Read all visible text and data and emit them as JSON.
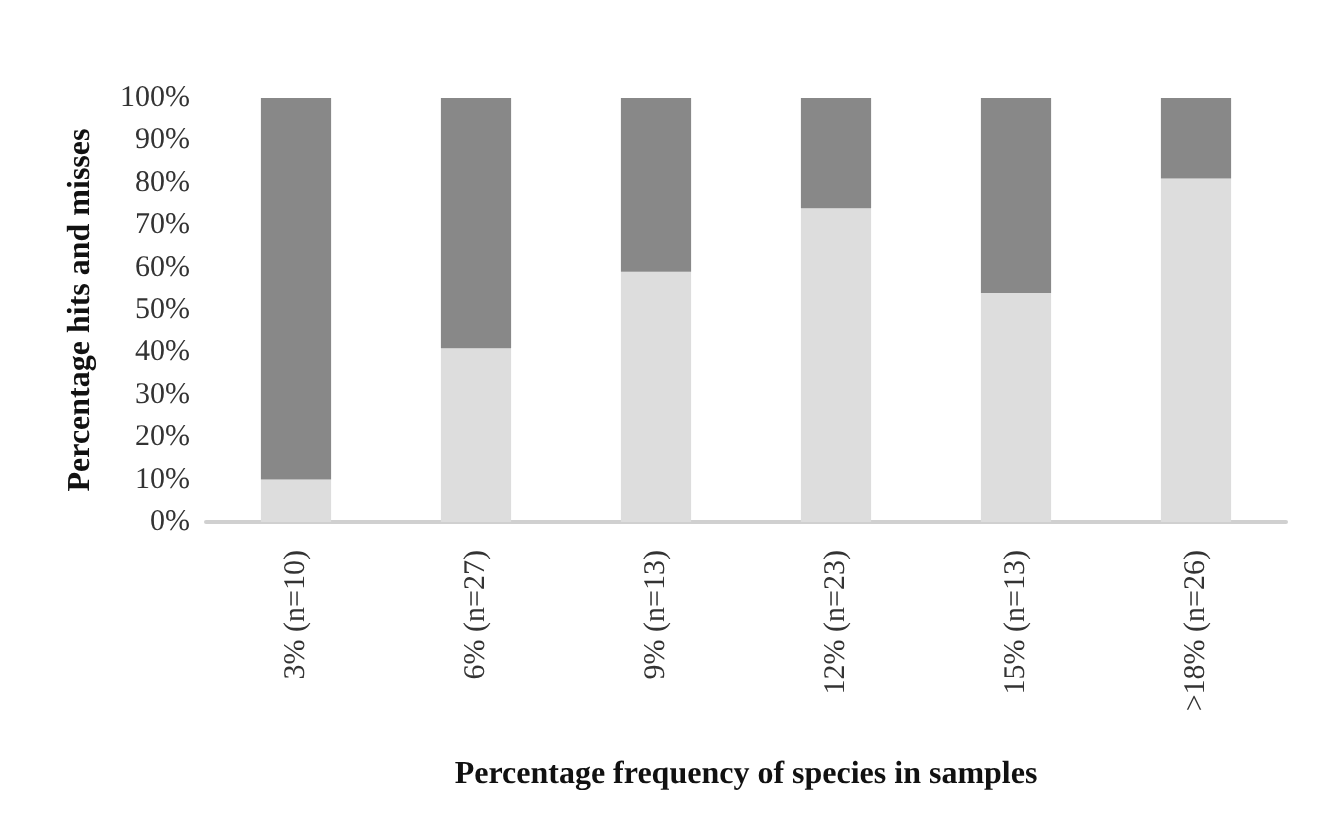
{
  "chart_data": {
    "type": "bar",
    "stacked": true,
    "xlabel": "Percentage frequency of species in samples",
    "ylabel": "Percentage hits and misses",
    "categories": [
      "3% (n=10)",
      "6% (n=27)",
      "9% (n=13)",
      "12% (n=23)",
      "15% (n=13)",
      ">18% (n=26)"
    ],
    "series": [
      {
        "color": "#dddddd",
        "values": [
          10,
          41,
          59,
          74,
          54,
          81
        ]
      },
      {
        "color": "#888888",
        "values": [
          90,
          59,
          41,
          26,
          46,
          19
        ]
      }
    ],
    "ylim": [
      0,
      100
    ],
    "yticks": [
      {
        "value": 0,
        "label": "0%"
      },
      {
        "value": 10,
        "label": "10%"
      },
      {
        "value": 20,
        "label": "20%"
      },
      {
        "value": 30,
        "label": "30%"
      },
      {
        "value": 40,
        "label": "40%"
      },
      {
        "value": 50,
        "label": "50%"
      },
      {
        "value": 60,
        "label": "60%"
      },
      {
        "value": 70,
        "label": "70%"
      },
      {
        "value": 80,
        "label": "80%"
      },
      {
        "value": 90,
        "label": "90%"
      },
      {
        "value": 100,
        "label": "100%"
      }
    ],
    "grid": false
  }
}
